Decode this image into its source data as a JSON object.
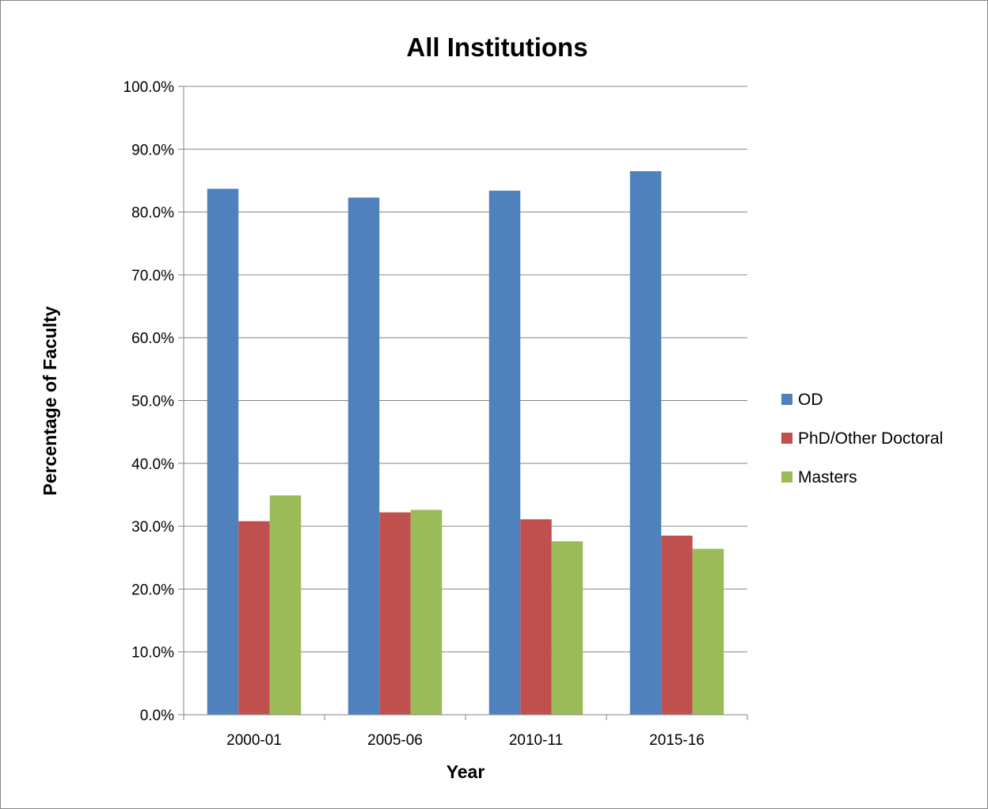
{
  "chart_data": {
    "type": "bar",
    "title": "All Institutions",
    "xlabel": "Year",
    "ylabel": "Percentage of Faculty",
    "categories": [
      "2000-01",
      "2005-06",
      "2010-11",
      "2015-16"
    ],
    "series": [
      {
        "name": "OD",
        "color": "#4F81BD",
        "values": [
          83.7,
          82.3,
          83.4,
          86.5
        ]
      },
      {
        "name": "PhD/Other Doctoral",
        "color": "#C0504D",
        "values": [
          30.8,
          32.2,
          31.1,
          28.5
        ]
      },
      {
        "name": "Masters",
        "color": "#9BBB59",
        "values": [
          34.9,
          32.6,
          27.6,
          26.4
        ]
      }
    ],
    "ylim": [
      0,
      100
    ],
    "yticks": [
      0,
      10,
      20,
      30,
      40,
      50,
      60,
      70,
      80,
      90,
      100
    ],
    "ytick_labels": [
      "0.0%",
      "10.0%",
      "20.0%",
      "30.0%",
      "40.0%",
      "50.0%",
      "60.0%",
      "70.0%",
      "80.0%",
      "90.0%",
      "100.0%"
    ],
    "grid": true,
    "legend_position": "right"
  }
}
